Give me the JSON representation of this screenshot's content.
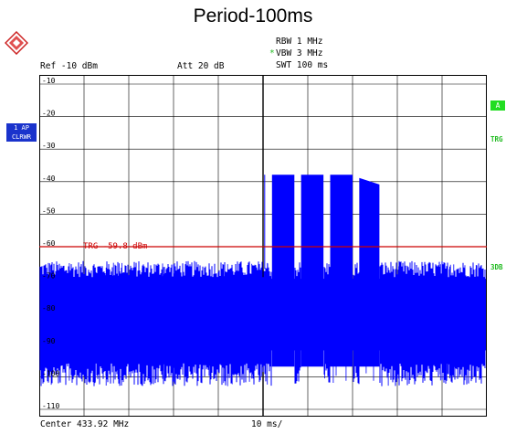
{
  "chart_data": {
    "type": "line",
    "title": "Period-100ms",
    "x_unit_label": "10 ms/",
    "xlim": [
      0,
      100
    ],
    "ylim": [
      -115,
      -5
    ],
    "ylabel_ticks": [
      -10,
      -20,
      -30,
      -40,
      -50,
      -60,
      -70,
      -80,
      -90,
      -100,
      -110
    ],
    "grid": true,
    "noise_floor_dbm": -84,
    "noise_band_dbm": [
      -68,
      -97
    ],
    "pulses": [
      {
        "start_ms": 52.0,
        "end_ms": 57.0,
        "level_dbm": -39
      },
      {
        "start_ms": 58.5,
        "end_ms": 63.5,
        "level_dbm": -39
      },
      {
        "start_ms": 65.0,
        "end_ms": 70.0,
        "level_dbm": -39
      },
      {
        "start_ms": 71.5,
        "end_ms": 76.0,
        "level_dbm": -40
      }
    ],
    "trigger_line_dbm": -60,
    "trigger_label": "TRG -59.8 dBm",
    "series_color": "#0000ff"
  },
  "header": {
    "ref_level": "Ref -10 dBm",
    "att": "Att  20 dB",
    "rbw": "RBW 1 MHz",
    "vbw": "VBW 3 MHz",
    "vbw_marker": "*",
    "swt": "SWT 100 ms"
  },
  "footer": {
    "center": "Center 433.92 MHz",
    "x_div": "10 ms/"
  },
  "side_labels": {
    "trace": [
      "1 AP",
      "CLRWR"
    ],
    "marker_a": "A",
    "trg": "TRG",
    "sdb": "3DB"
  },
  "colors": {
    "trace": "#0000ff",
    "trigger": "#cc0000",
    "grid": "#000000",
    "status_green": "#22dd22",
    "trace_box": "#1a33cc"
  }
}
